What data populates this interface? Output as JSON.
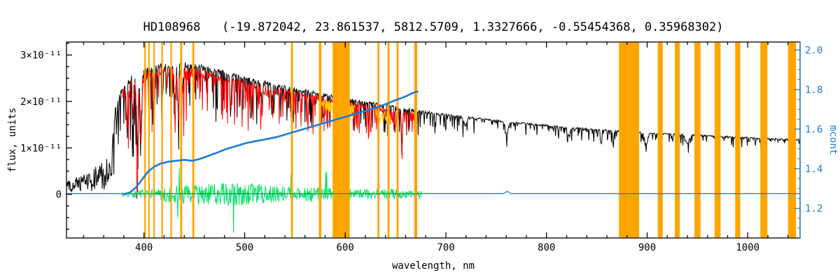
{
  "chart_data": {
    "type": "line",
    "title": "HD108968   (-19.872042, 23.861537, 5812.5709, 1.3327666, -0.55454368, 0.35968302)",
    "xlabel": "wavelength, nm",
    "ylabel_left": "flux, units",
    "ylabel_right": "mcont",
    "flux_unit": "1e-11",
    "xlim": [
      323,
      1052
    ],
    "ylim_left": [
      -0.94,
      3.28
    ],
    "ylim_right": [
      1.05,
      2.04
    ],
    "grid": false,
    "x_ticks": {
      "major": [
        400,
        500,
        600,
        700,
        800,
        900,
        1000
      ],
      "labels": [
        "400",
        "500",
        "600",
        "700",
        "800",
        "900",
        "1000"
      ],
      "minor_step": 20
    },
    "y_ticks_left": {
      "major": [
        0,
        1,
        2,
        3
      ],
      "labels": [
        "0",
        "1×10⁻¹¹",
        "2×10⁻¹¹",
        "3×10⁻¹¹"
      ],
      "minor_step": 0.25
    },
    "y_ticks_right": {
      "major": [
        1.2,
        1.4,
        1.6,
        1.8,
        2.0
      ],
      "labels": [
        "1.2",
        "1.4",
        "1.6",
        "1.8",
        "2.0"
      ],
      "minor_step": 0.05
    },
    "colors": {
      "background": "#ffffff",
      "frame": "#000000",
      "observed": "#000000",
      "fit": "#ff0000",
      "fit_masked": "#ffcc00",
      "residual": "#00e55e",
      "mcont": "#1b7cd6",
      "mask_band": "#ffa500"
    },
    "series": {
      "observed": {
        "label": "observed spectrum",
        "range": [
          323,
          1052
        ],
        "envelope": [
          [
            323,
            0.28
          ],
          [
            340,
            0.45
          ],
          [
            355,
            0.65
          ],
          [
            365,
            0.85
          ],
          [
            368,
            1.0
          ],
          [
            371,
            1.8
          ],
          [
            374,
            2.1
          ],
          [
            378,
            2.3
          ],
          [
            383,
            2.5
          ],
          [
            388,
            2.6
          ],
          [
            393,
            2.5
          ],
          [
            398,
            2.65
          ],
          [
            403,
            2.75
          ],
          [
            410,
            2.8
          ],
          [
            420,
            2.85
          ],
          [
            432,
            2.82
          ],
          [
            442,
            2.85
          ],
          [
            455,
            2.8
          ],
          [
            470,
            2.72
          ],
          [
            485,
            2.65
          ],
          [
            500,
            2.55
          ],
          [
            515,
            2.47
          ],
          [
            530,
            2.4
          ],
          [
            545,
            2.33
          ],
          [
            560,
            2.27
          ],
          [
            575,
            2.2
          ],
          [
            590,
            2.13
          ],
          [
            605,
            2.07
          ],
          [
            620,
            2.01
          ],
          [
            635,
            1.96
          ],
          [
            650,
            1.9
          ],
          [
            665,
            1.85
          ],
          [
            685,
            1.78
          ],
          [
            705,
            1.72
          ],
          [
            725,
            1.67
          ],
          [
            745,
            1.62
          ],
          [
            765,
            1.57
          ],
          [
            785,
            1.53
          ],
          [
            805,
            1.49
          ],
          [
            825,
            1.45
          ],
          [
            845,
            1.42
          ],
          [
            865,
            1.39
          ],
          [
            885,
            1.36
          ],
          [
            905,
            1.33
          ],
          [
            925,
            1.31
          ],
          [
            945,
            1.29
          ],
          [
            965,
            1.27
          ],
          [
            985,
            1.25
          ],
          [
            1005,
            1.23
          ],
          [
            1025,
            1.21
          ],
          [
            1052,
            1.19
          ]
        ],
        "absorption_depth": [
          [
            369,
            1.5
          ],
          [
            380,
            1.4
          ],
          [
            400,
            1.45
          ],
          [
            430,
            1.3
          ],
          [
            460,
            1.15
          ],
          [
            490,
            1.0
          ],
          [
            520,
            0.9
          ],
          [
            550,
            0.8
          ],
          [
            580,
            0.75
          ],
          [
            610,
            0.7
          ],
          [
            640,
            0.62
          ],
          [
            670,
            0.55
          ],
          [
            700,
            0.42
          ],
          [
            750,
            0.35
          ],
          [
            800,
            0.3
          ],
          [
            850,
            0.28
          ],
          [
            900,
            0.26
          ],
          [
            950,
            0.24
          ],
          [
            1000,
            0.22
          ],
          [
            1052,
            0.2
          ]
        ],
        "deep_lines": [
          [
            383,
            0.9,
            0.8
          ],
          [
            389,
            0.9,
            0.8
          ],
          [
            393.4,
            1.7,
            1.0
          ],
          [
            396.8,
            1.5,
            1.0
          ],
          [
            410.2,
            1.1,
            0.8
          ],
          [
            422.7,
            0.5,
            0.7
          ],
          [
            430.8,
            0.8,
            1.0
          ],
          [
            434.0,
            1.0,
            0.8
          ],
          [
            438.4,
            0.6,
            0.8
          ],
          [
            486.1,
            0.9,
            0.8
          ],
          [
            517.3,
            0.55,
            0.9
          ],
          [
            527.0,
            0.45,
            0.8
          ],
          [
            589.3,
            0.5,
            0.9
          ],
          [
            656.3,
            0.9,
            0.8
          ],
          [
            719,
            0.2,
            2.0
          ],
          [
            760.5,
            0.35,
            1.8
          ],
          [
            822,
            0.2,
            1.5
          ],
          [
            854.2,
            0.35,
            0.8
          ],
          [
            866.2,
            0.35,
            0.8
          ],
          [
            899,
            0.25,
            2.0
          ],
          [
            940,
            0.22,
            2.5
          ],
          [
            1015,
            0.15,
            2.0
          ]
        ]
      },
      "fit": {
        "label": "fitted spectrum",
        "range": [
          378,
          672
        ]
      },
      "fit_masked": {
        "label": "fit inside masked regions",
        "segments": [
          [
            573,
            587
          ],
          [
            604,
            610
          ],
          [
            630,
            646
          ]
        ]
      },
      "residual": {
        "label": "fit residuals",
        "range": [
          378,
          676
        ],
        "amplitude": [
          [
            378,
            0.05
          ],
          [
            395,
            0.1
          ],
          [
            415,
            0.16
          ],
          [
            435,
            0.2
          ],
          [
            455,
            0.22
          ],
          [
            475,
            0.24
          ],
          [
            495,
            0.25
          ],
          [
            515,
            0.22
          ],
          [
            535,
            0.18
          ],
          [
            555,
            0.15
          ],
          [
            575,
            0.16
          ],
          [
            595,
            0.14
          ],
          [
            615,
            0.12
          ],
          [
            635,
            0.13
          ],
          [
            655,
            0.1
          ],
          [
            676,
            0.07
          ]
        ]
      },
      "mcont": {
        "label": "continuum level (mcont)",
        "points": [
          [
            380,
            1.27
          ],
          [
            386,
            1.28
          ],
          [
            392,
            1.305
          ],
          [
            398,
            1.345
          ],
          [
            404,
            1.385
          ],
          [
            410,
            1.41
          ],
          [
            416,
            1.425
          ],
          [
            424,
            1.435
          ],
          [
            432,
            1.44
          ],
          [
            440,
            1.445
          ],
          [
            448,
            1.44
          ],
          [
            456,
            1.45
          ],
          [
            464,
            1.465
          ],
          [
            472,
            1.48
          ],
          [
            482,
            1.5
          ],
          [
            492,
            1.515
          ],
          [
            502,
            1.53
          ],
          [
            512,
            1.54
          ],
          [
            522,
            1.55
          ],
          [
            532,
            1.56
          ],
          [
            542,
            1.575
          ],
          [
            552,
            1.59
          ],
          [
            562,
            1.605
          ],
          [
            572,
            1.62
          ],
          [
            582,
            1.635
          ],
          [
            592,
            1.65
          ],
          [
            602,
            1.665
          ],
          [
            612,
            1.68
          ],
          [
            622,
            1.695
          ],
          [
            632,
            1.71
          ],
          [
            642,
            1.73
          ],
          [
            652,
            1.75
          ],
          [
            660,
            1.765
          ],
          [
            666,
            1.78
          ],
          [
            672,
            1.79
          ]
        ]
      },
      "mcont_baseline": {
        "label": "mcont baseline",
        "points": [
          [
            323,
            1.274
          ],
          [
            757,
            1.274
          ],
          [
            761,
            1.286
          ],
          [
            765,
            1.274
          ],
          [
            1052,
            1.274
          ]
        ]
      }
    },
    "mask_bands": [
      [
        401,
        1.5
      ],
      [
        405,
        1.5
      ],
      [
        410,
        1.5
      ],
      [
        418,
        1.5
      ],
      [
        427,
        1.5
      ],
      [
        437,
        2
      ],
      [
        449,
        2
      ],
      [
        547,
        2
      ],
      [
        575,
        2.5
      ],
      [
        596,
        17
      ],
      [
        633,
        2
      ],
      [
        643,
        2
      ],
      [
        652,
        2
      ],
      [
        670,
        3
      ],
      [
        882,
        20
      ],
      [
        913,
        5
      ],
      [
        930,
        5
      ],
      [
        950,
        6
      ],
      [
        970,
        6
      ],
      [
        990,
        5
      ],
      [
        1016,
        7
      ],
      [
        1044,
        8
      ]
    ]
  }
}
